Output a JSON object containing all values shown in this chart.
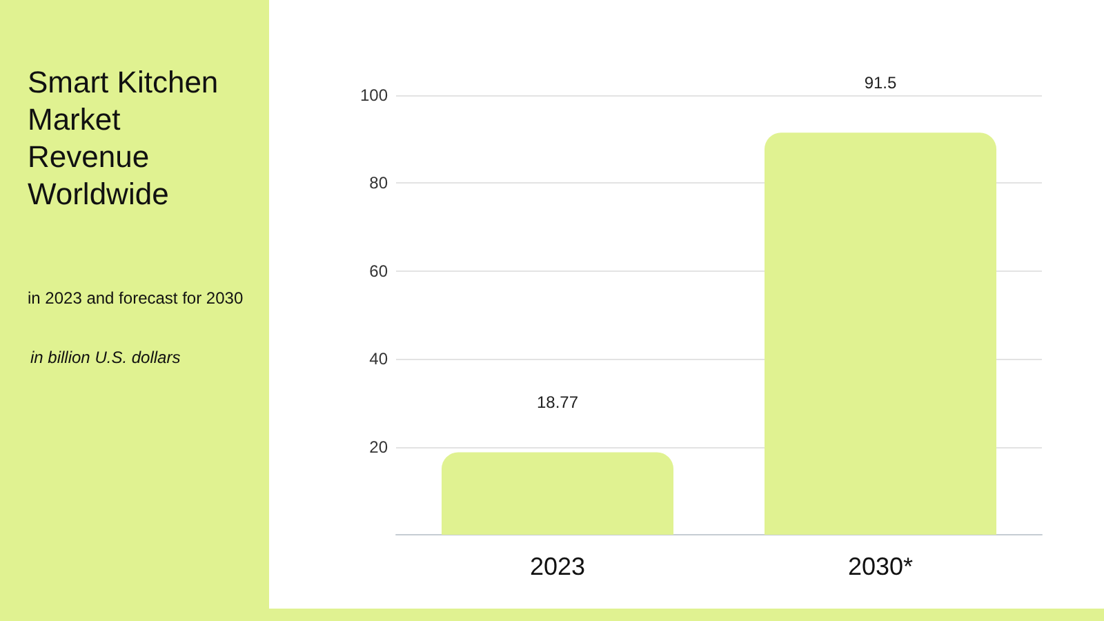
{
  "chart_data": {
    "type": "bar",
    "title": "Smart Kitchen Market Revenue Worldwide",
    "subtitle": "in 2023 and forecast for 2030",
    "annotations": [
      "in billion U.S. dollars"
    ],
    "categories": [
      "2023",
      "2030*"
    ],
    "values": [
      18.77,
      91.5
    ],
    "color": "#e0f291",
    "ylim": [
      0,
      100
    ],
    "yticks": [
      20,
      40,
      60,
      80,
      100
    ],
    "grid": "y",
    "data_labels": true
  }
}
